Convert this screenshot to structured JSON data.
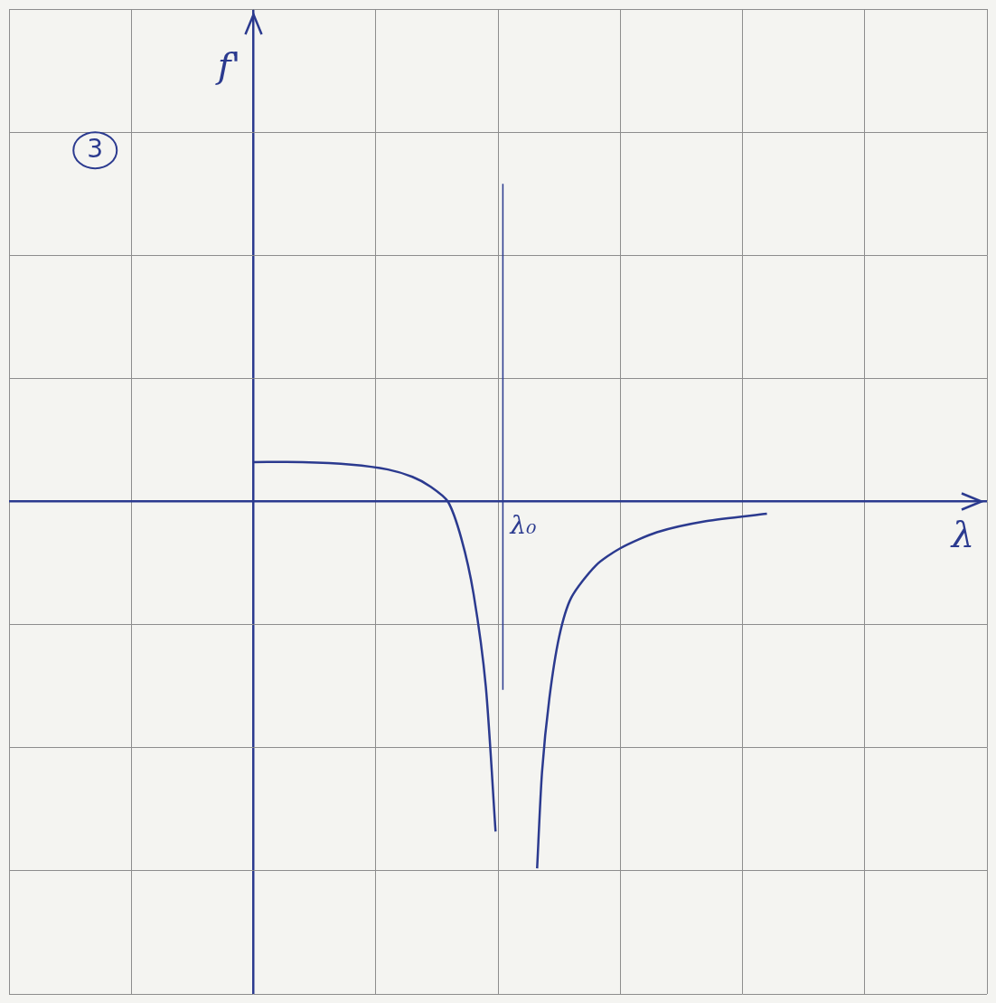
{
  "chart_data": {
    "type": "line",
    "title": "3",
    "x_label": "λ",
    "y_label": "f'",
    "color": "#2b3a8f",
    "series": [
      {
        "color": "#2b3a8f",
        "x": [
          0,
          0.4,
          0.8,
          1.1,
          1.3,
          1.45,
          1.59,
          1.7,
          1.8,
          1.9,
          1.98
        ],
        "values": [
          0.32,
          0.32,
          0.3,
          0.26,
          0.2,
          0.12,
          0,
          -0.3,
          -0.75,
          -1.5,
          -2.68
        ]
      },
      {
        "color": "#2b3a8f",
        "x": [
          2.32,
          2.36,
          2.42,
          2.5,
          2.6,
          2.8,
          3.0,
          3.3,
          3.7,
          4.2
        ],
        "values": [
          -2.98,
          -2.2,
          -1.6,
          -1.1,
          -0.78,
          -0.52,
          -0.38,
          -0.25,
          -0.16,
          -0.1
        ]
      }
    ],
    "asymptote": {
      "x": 2.04,
      "y": [
        -1.53,
        2.58
      ],
      "label": "λ₀",
      "line_style": "solid"
    },
    "xlim": [
      -2,
      6
    ],
    "ylim": [
      -4,
      4
    ],
    "xticks": [
      -2,
      -1,
      0,
      1,
      2,
      3,
      4,
      5,
      6
    ],
    "yticks": [
      -4,
      -3,
      -2,
      -1,
      0,
      1,
      2,
      3,
      4
    ],
    "grid": true,
    "tick_labels": false
  }
}
